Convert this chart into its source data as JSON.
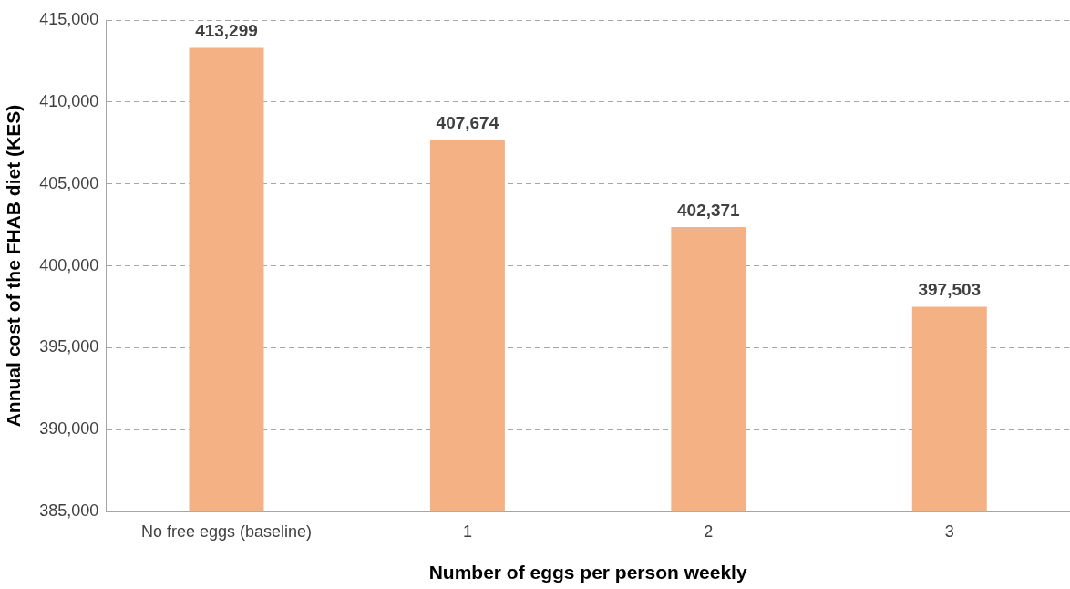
{
  "chart_data": {
    "type": "bar",
    "xlabel": "Number of eggs per person weekly",
    "ylabel": "Annual cost of the FHAB diet (KES)",
    "categories": [
      "No free eggs (baseline)",
      "1",
      "2",
      "3"
    ],
    "values": [
      413299,
      407674,
      402371,
      397503
    ],
    "color": "#f4b183",
    "ylim": [
      385000,
      415000
    ],
    "yticks": [
      {
        "value": 385000,
        "label": "385,000"
      },
      {
        "value": 390000,
        "label": "390,000"
      },
      {
        "value": 395000,
        "label": "395,000"
      },
      {
        "value": 400000,
        "label": "400,000"
      },
      {
        "value": 405000,
        "label": "405,000"
      },
      {
        "value": 410000,
        "label": "410,000"
      },
      {
        "value": 415000,
        "label": "415,000"
      }
    ],
    "grid": "y",
    "value_labels": [
      "413,299",
      "407,674",
      "402,371",
      "397,503"
    ]
  }
}
